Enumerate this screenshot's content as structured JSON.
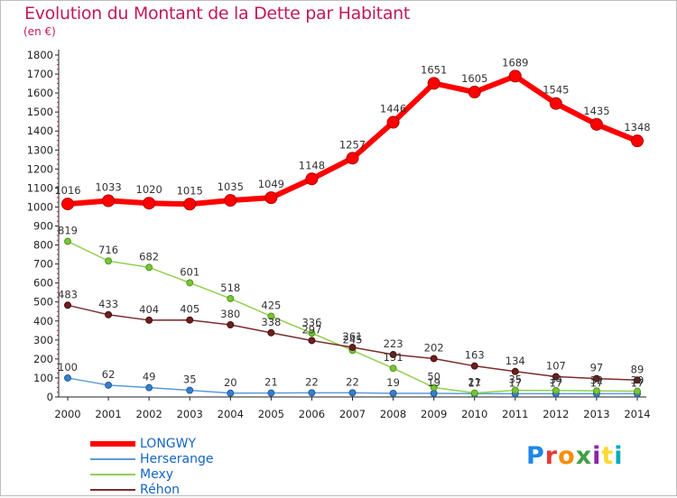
{
  "title": "Evolution du Montant de la Dette par Habitant",
  "subtitle": "(en €)",
  "logo": "Proxiti",
  "chart_data": {
    "type": "line",
    "title": "Evolution du Montant de la Dette par Habitant",
    "ylabel": "(en €)",
    "ylim": [
      0,
      1800
    ],
    "yticks": [
      0,
      100,
      200,
      300,
      400,
      500,
      600,
      700,
      800,
      900,
      1000,
      1100,
      1200,
      1300,
      1400,
      1500,
      1600,
      1700,
      1800
    ],
    "x": [
      "2000",
      "2001",
      "2002",
      "2003",
      "2004",
      "2005",
      "2006",
      "2007",
      "2008",
      "2009",
      "2010",
      "2011",
      "2012",
      "2013",
      "2014"
    ],
    "grid": false,
    "legend_position": "bottom-left",
    "series": [
      {
        "name": "LONGWY",
        "color": "#ff0000",
        "values": [
          1016,
          1033,
          1020,
          1015,
          1035,
          1049,
          1148,
          1257,
          1446,
          1651,
          1605,
          1689,
          1545,
          1435,
          1348
        ]
      },
      {
        "name": "Herserange",
        "color": "#5b9bd5",
        "values": [
          100,
          62,
          49,
          35,
          20,
          21,
          22,
          22,
          19,
          19,
          17,
          17,
          17,
          17,
          17
        ]
      },
      {
        "name": "Mexy",
        "color": "#92d050",
        "values": [
          819,
          716,
          682,
          601,
          518,
          425,
          336,
          245,
          151,
          50,
          21,
          35,
          34,
          32,
          30
        ]
      },
      {
        "name": "Réhon",
        "color": "#7b2c2c",
        "values": [
          483,
          433,
          404,
          405,
          380,
          338,
          297,
          261,
          223,
          202,
          163,
          134,
          107,
          97,
          89
        ]
      }
    ]
  }
}
